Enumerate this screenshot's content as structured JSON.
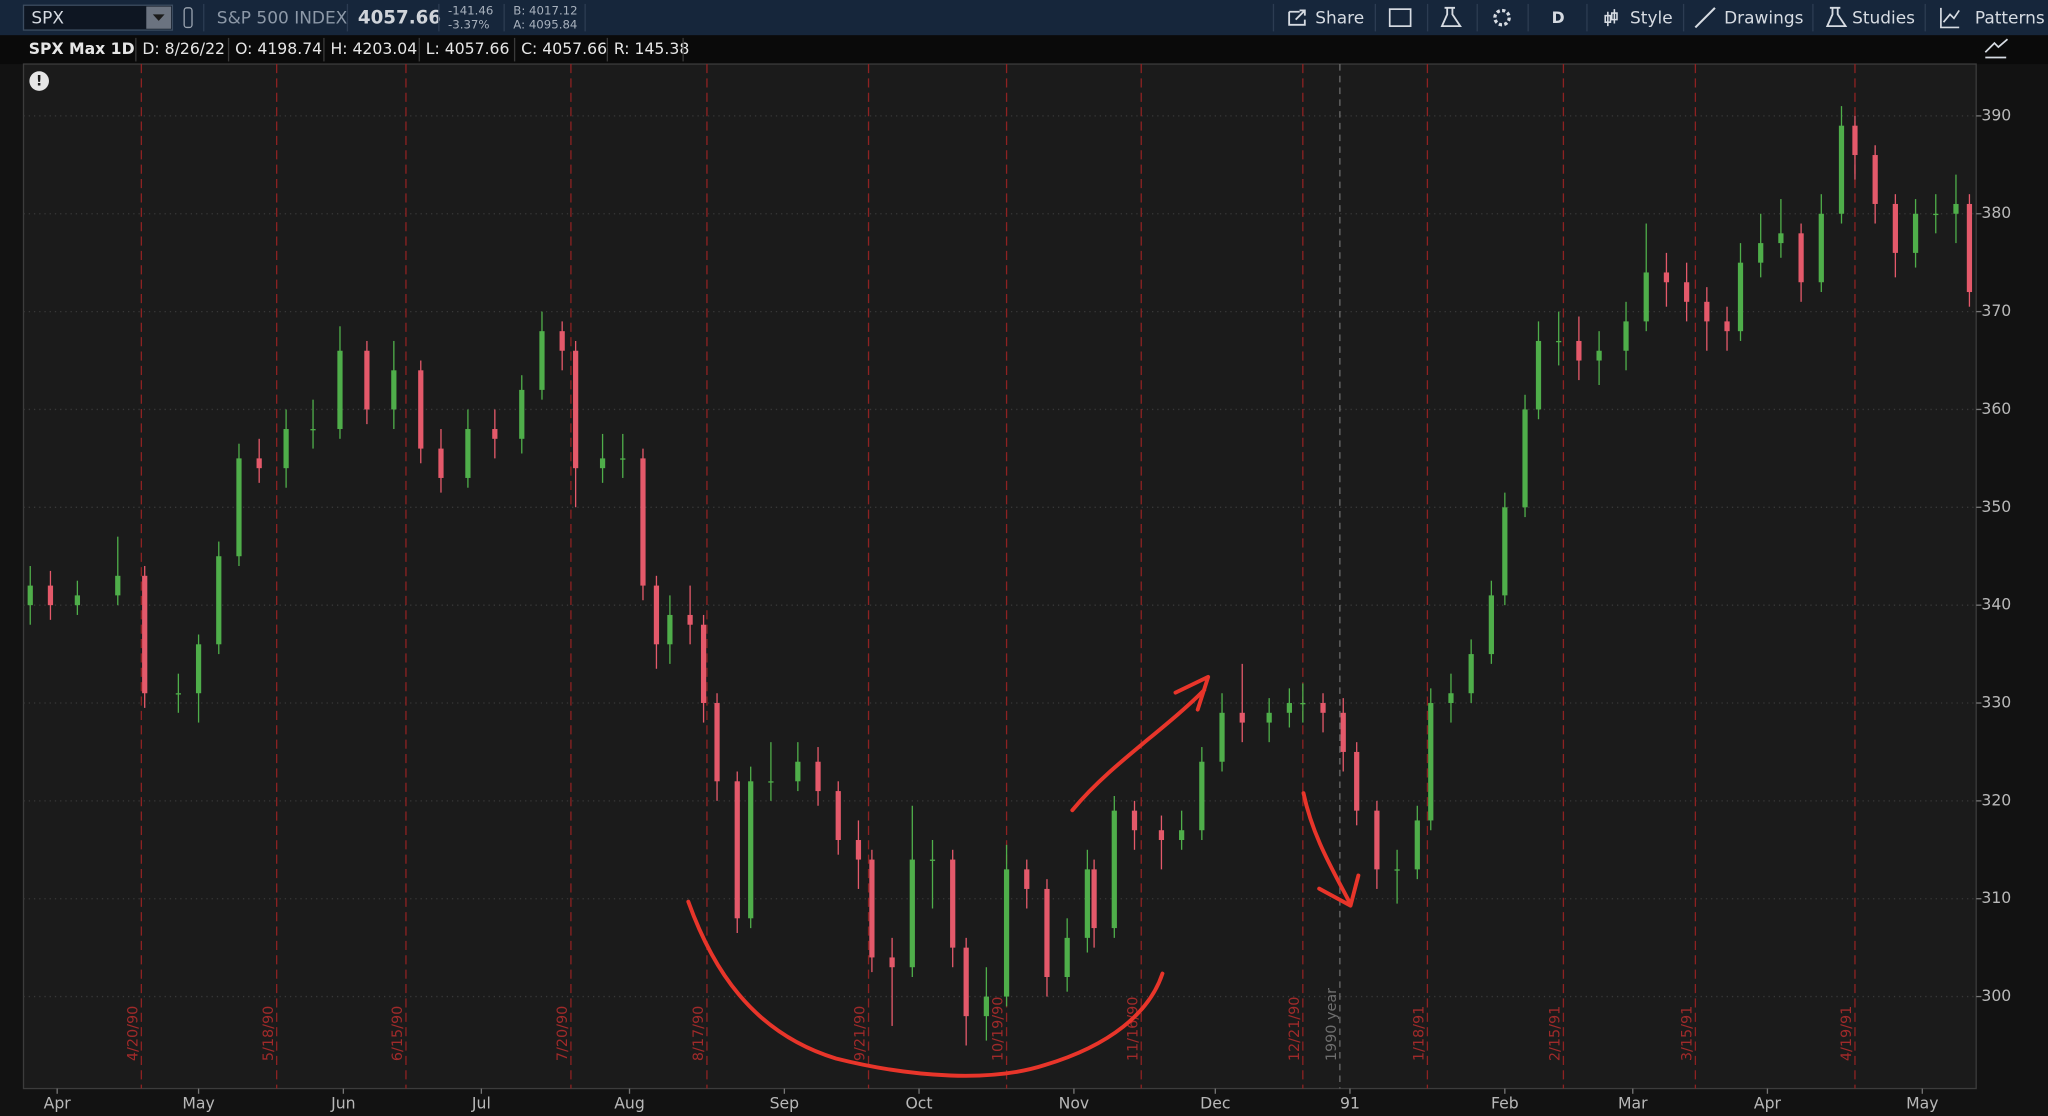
{
  "toolbar": {
    "symbol": "SPX",
    "description": "S&P 500 INDEX",
    "last": "4057.66",
    "change": "-141.46",
    "change_pct": "-3.37%",
    "bid": "B: 4017.12",
    "ask": "A: 4095.84",
    "period": "D",
    "buttons": [
      "Share",
      "Style",
      "Drawings",
      "Studies",
      "Patterns"
    ]
  },
  "info_bar": {
    "label": "SPX Max 1D",
    "fields": [
      "D: 8/26/22",
      "O: 4198.74",
      "H: 4203.04",
      "L: 4057.66",
      "C: 4057.66",
      "R: 145.38"
    ]
  },
  "chart_data": {
    "type": "candlestick",
    "up_color": "#4fae4a",
    "down_color": "#e4596a",
    "grid": true,
    "xlim": [
      0,
      290
    ],
    "ylim": [
      290.6,
      395.3
    ],
    "yticks": [
      300,
      310,
      320,
      330,
      340,
      350,
      360,
      370,
      380,
      390
    ],
    "xticks": [
      {
        "value": 5,
        "label": "Apr"
      },
      {
        "value": 26,
        "label": "May"
      },
      {
        "value": 47.5,
        "label": "Jun"
      },
      {
        "value": 68,
        "label": "Jul"
      },
      {
        "value": 90,
        "label": "Aug"
      },
      {
        "value": 113,
        "label": "Sep"
      },
      {
        "value": 133,
        "label": "Oct"
      },
      {
        "value": 156,
        "label": "Nov"
      },
      {
        "value": 177,
        "label": "Dec"
      },
      {
        "value": 197,
        "label": "91"
      },
      {
        "value": 220,
        "label": "Feb"
      },
      {
        "value": 239,
        "label": "Mar"
      },
      {
        "value": 259,
        "label": "Apr"
      },
      {
        "value": 282,
        "label": "May"
      }
    ],
    "events": [
      {
        "value": 17.5,
        "label": "4/20/90"
      },
      {
        "value": 37.6,
        "label": "5/18/90"
      },
      {
        "value": 56.8,
        "label": "6/15/90"
      },
      {
        "value": 81.3,
        "label": "7/20/90"
      },
      {
        "value": 101.5,
        "label": "8/17/90"
      },
      {
        "value": 125.5,
        "label": "9/21/90"
      },
      {
        "value": 146,
        "label": "10/19/90"
      },
      {
        "value": 166,
        "label": "11/16/90"
      },
      {
        "value": 190,
        "label": "12/21/90"
      },
      {
        "value": 208.5,
        "label": "1/18/91"
      },
      {
        "value": 228.7,
        "label": "2/15/91"
      },
      {
        "value": 248.3,
        "label": "3/15/91"
      },
      {
        "value": 272,
        "label": "4/19/91"
      }
    ],
    "year_marker": {
      "value": 195.5,
      "label": "1990 year"
    },
    "candles": [
      {
        "x": 1,
        "open": 340,
        "high": 344,
        "low": 338,
        "close": 342
      },
      {
        "x": 4,
        "open": 342,
        "high": 343.5,
        "low": 338.5,
        "close": 340
      },
      {
        "x": 8,
        "open": 340,
        "high": 342.5,
        "low": 339,
        "close": 341
      },
      {
        "x": 14,
        "open": 341,
        "high": 347,
        "low": 340,
        "close": 343
      },
      {
        "x": 18,
        "open": 343,
        "high": 344,
        "low": 329.5,
        "close": 331
      },
      {
        "x": 23,
        "open": 331,
        "high": 333,
        "low": 329,
        "close": 331
      },
      {
        "x": 26,
        "open": 331,
        "high": 337,
        "low": 328,
        "close": 336
      },
      {
        "x": 29,
        "open": 336,
        "high": 346.5,
        "low": 335,
        "close": 345
      },
      {
        "x": 32,
        "open": 345,
        "high": 356.5,
        "low": 344,
        "close": 355
      },
      {
        "x": 35,
        "open": 355,
        "high": 357,
        "low": 352.5,
        "close": 354
      },
      {
        "x": 39,
        "open": 354,
        "high": 360,
        "low": 352,
        "close": 358
      },
      {
        "x": 43,
        "open": 358,
        "high": 361,
        "low": 356,
        "close": 358
      },
      {
        "x": 47,
        "open": 358,
        "high": 368.5,
        "low": 357,
        "close": 366
      },
      {
        "x": 51,
        "open": 366,
        "high": 367,
        "low": 358.5,
        "close": 360
      },
      {
        "x": 55,
        "open": 360,
        "high": 367,
        "low": 358,
        "close": 364
      },
      {
        "x": 59,
        "open": 364,
        "high": 365,
        "low": 354.5,
        "close": 356
      },
      {
        "x": 62,
        "open": 356,
        "high": 358,
        "low": 351.5,
        "close": 353
      },
      {
        "x": 66,
        "open": 353,
        "high": 360,
        "low": 352,
        "close": 358
      },
      {
        "x": 70,
        "open": 358,
        "high": 360,
        "low": 355,
        "close": 357
      },
      {
        "x": 74,
        "open": 357,
        "high": 363.5,
        "low": 355.5,
        "close": 362
      },
      {
        "x": 77,
        "open": 362,
        "high": 370,
        "low": 361,
        "close": 368
      },
      {
        "x": 80,
        "open": 368,
        "high": 369,
        "low": 364,
        "close": 366
      },
      {
        "x": 82,
        "open": 366,
        "high": 367,
        "low": 350,
        "close": 354
      },
      {
        "x": 86,
        "open": 354,
        "high": 357.5,
        "low": 352.5,
        "close": 355
      },
      {
        "x": 89,
        "open": 355,
        "high": 357.5,
        "low": 353,
        "close": 355
      },
      {
        "x": 92,
        "open": 355,
        "high": 356,
        "low": 340.5,
        "close": 342
      },
      {
        "x": 94,
        "open": 342,
        "high": 343,
        "low": 333.5,
        "close": 336
      },
      {
        "x": 96,
        "open": 336,
        "high": 341,
        "low": 334,
        "close": 339
      },
      {
        "x": 99,
        "open": 339,
        "high": 342,
        "low": 336,
        "close": 338
      },
      {
        "x": 101,
        "open": 338,
        "high": 339,
        "low": 328,
        "close": 330
      },
      {
        "x": 103,
        "open": 330,
        "high": 331,
        "low": 320,
        "close": 322
      },
      {
        "x": 106,
        "open": 322,
        "high": 323,
        "low": 306.5,
        "close": 308
      },
      {
        "x": 108,
        "open": 308,
        "high": 323.5,
        "low": 307,
        "close": 322
      },
      {
        "x": 111,
        "open": 322,
        "high": 326,
        "low": 320,
        "close": 322
      },
      {
        "x": 115,
        "open": 322,
        "high": 326,
        "low": 321,
        "close": 324
      },
      {
        "x": 118,
        "open": 324,
        "high": 325.5,
        "low": 319.5,
        "close": 321
      },
      {
        "x": 121,
        "open": 321,
        "high": 322,
        "low": 314.5,
        "close": 316
      },
      {
        "x": 124,
        "open": 316,
        "high": 318,
        "low": 311,
        "close": 314
      },
      {
        "x": 126,
        "open": 314,
        "high": 315,
        "low": 302.5,
        "close": 304
      },
      {
        "x": 129,
        "open": 304,
        "high": 306,
        "low": 297,
        "close": 303
      },
      {
        "x": 132,
        "open": 303,
        "high": 319.5,
        "low": 302,
        "close": 314
      },
      {
        "x": 135,
        "open": 314,
        "high": 316,
        "low": 309,
        "close": 314
      },
      {
        "x": 138,
        "open": 314,
        "high": 315,
        "low": 303,
        "close": 305
      },
      {
        "x": 140,
        "open": 305,
        "high": 306,
        "low": 295,
        "close": 298
      },
      {
        "x": 143,
        "open": 298,
        "high": 303,
        "low": 295.5,
        "close": 300
      },
      {
        "x": 146,
        "open": 300,
        "high": 315.5,
        "low": 299,
        "close": 313
      },
      {
        "x": 149,
        "open": 313,
        "high": 314,
        "low": 309,
        "close": 311
      },
      {
        "x": 152,
        "open": 311,
        "high": 312,
        "low": 300,
        "close": 302
      },
      {
        "x": 155,
        "open": 302,
        "high": 308,
        "low": 300.5,
        "close": 306
      },
      {
        "x": 158,
        "open": 306,
        "high": 315,
        "low": 304.5,
        "close": 313
      },
      {
        "x": 159,
        "open": 313,
        "high": 314,
        "low": 305,
        "close": 307
      },
      {
        "x": 162,
        "open": 307,
        "high": 320.5,
        "low": 306,
        "close": 319
      },
      {
        "x": 165,
        "open": 319,
        "high": 320,
        "low": 315,
        "close": 317
      },
      {
        "x": 169,
        "open": 317,
        "high": 318.5,
        "low": 313,
        "close": 316
      },
      {
        "x": 172,
        "open": 316,
        "high": 319,
        "low": 315,
        "close": 317
      },
      {
        "x": 175,
        "open": 317,
        "high": 325.5,
        "low": 316,
        "close": 324
      },
      {
        "x": 178,
        "open": 324,
        "high": 331,
        "low": 323,
        "close": 329
      },
      {
        "x": 181,
        "open": 329,
        "high": 334,
        "low": 326,
        "close": 328
      },
      {
        "x": 185,
        "open": 328,
        "high": 330.5,
        "low": 326,
        "close": 329
      },
      {
        "x": 188,
        "open": 329,
        "high": 331.5,
        "low": 327.5,
        "close": 330
      },
      {
        "x": 190,
        "open": 330,
        "high": 332,
        "low": 328,
        "close": 330
      },
      {
        "x": 193,
        "open": 330,
        "high": 331,
        "low": 327,
        "close": 329
      },
      {
        "x": 196,
        "open": 329,
        "high": 330.5,
        "low": 323,
        "close": 325
      },
      {
        "x": 198,
        "open": 325,
        "high": 326,
        "low": 317.5,
        "close": 319
      },
      {
        "x": 201,
        "open": 319,
        "high": 320,
        "low": 311,
        "close": 313
      },
      {
        "x": 204,
        "open": 313,
        "high": 315,
        "low": 309.5,
        "close": 313
      },
      {
        "x": 207,
        "open": 313,
        "high": 319.5,
        "low": 312,
        "close": 318
      },
      {
        "x": 209,
        "open": 318,
        "high": 331.5,
        "low": 317,
        "close": 330
      },
      {
        "x": 212,
        "open": 330,
        "high": 333,
        "low": 328,
        "close": 331
      },
      {
        "x": 215,
        "open": 331,
        "high": 336.5,
        "low": 330,
        "close": 335
      },
      {
        "x": 218,
        "open": 335,
        "high": 342.5,
        "low": 334,
        "close": 341
      },
      {
        "x": 220,
        "open": 341,
        "high": 351.5,
        "low": 340,
        "close": 350
      },
      {
        "x": 223,
        "open": 350,
        "high": 361.5,
        "low": 349,
        "close": 360
      },
      {
        "x": 225,
        "open": 360,
        "high": 369,
        "low": 359,
        "close": 367
      },
      {
        "x": 228,
        "open": 367,
        "high": 370,
        "low": 364.5,
        "close": 367
      },
      {
        "x": 231,
        "open": 367,
        "high": 369.5,
        "low": 363,
        "close": 365
      },
      {
        "x": 234,
        "open": 365,
        "high": 368,
        "low": 362.5,
        "close": 366
      },
      {
        "x": 238,
        "open": 366,
        "high": 371,
        "low": 364,
        "close": 369
      },
      {
        "x": 241,
        "open": 369,
        "high": 379,
        "low": 368,
        "close": 374
      },
      {
        "x": 244,
        "open": 374,
        "high": 376,
        "low": 370.5,
        "close": 373
      },
      {
        "x": 247,
        "open": 373,
        "high": 375,
        "low": 369,
        "close": 371
      },
      {
        "x": 250,
        "open": 371,
        "high": 372.5,
        "low": 366,
        "close": 369
      },
      {
        "x": 253,
        "open": 369,
        "high": 370.5,
        "low": 366,
        "close": 368
      },
      {
        "x": 255,
        "open": 368,
        "high": 377,
        "low": 367,
        "close": 375
      },
      {
        "x": 258,
        "open": 375,
        "high": 380,
        "low": 373.5,
        "close": 377
      },
      {
        "x": 261,
        "open": 377,
        "high": 381.5,
        "low": 375.5,
        "close": 378
      },
      {
        "x": 264,
        "open": 378,
        "high": 379,
        "low": 371,
        "close": 373
      },
      {
        "x": 267,
        "open": 373,
        "high": 382,
        "low": 372,
        "close": 380
      },
      {
        "x": 270,
        "open": 380,
        "high": 391,
        "low": 379,
        "close": 389
      },
      {
        "x": 272,
        "open": 389,
        "high": 390,
        "low": 383.5,
        "close": 386
      },
      {
        "x": 275,
        "open": 386,
        "high": 387,
        "low": 379,
        "close": 381
      },
      {
        "x": 278,
        "open": 381,
        "high": 382,
        "low": 373.5,
        "close": 376
      },
      {
        "x": 281,
        "open": 376,
        "high": 381.5,
        "low": 374.5,
        "close": 380
      },
      {
        "x": 284,
        "open": 380,
        "high": 382,
        "low": 378,
        "close": 380
      },
      {
        "x": 287,
        "open": 380,
        "high": 384,
        "low": 377,
        "close": 381
      },
      {
        "x": 289,
        "open": 381,
        "high": 382,
        "low": 370.5,
        "close": 372
      }
    ]
  }
}
